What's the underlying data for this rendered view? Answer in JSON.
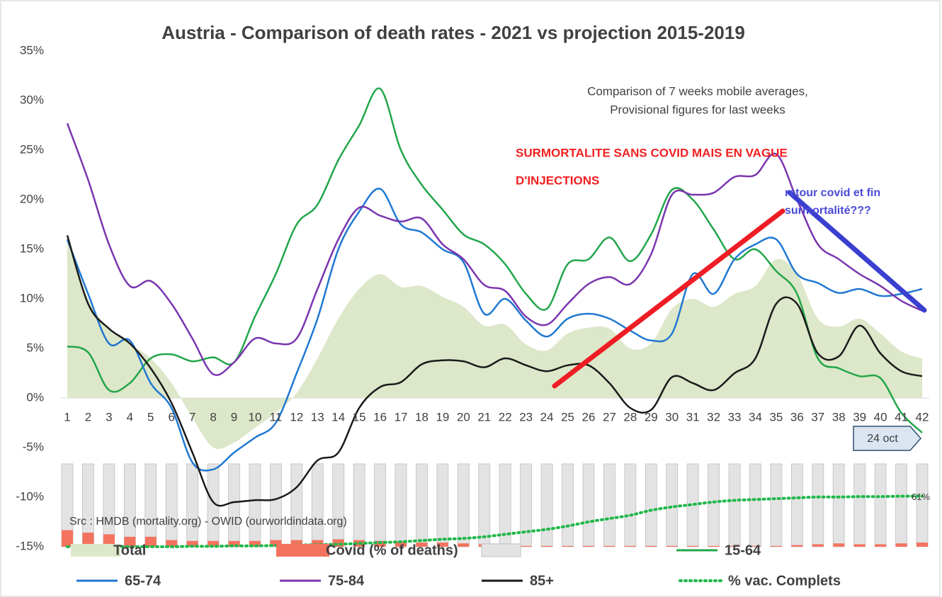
{
  "chart_data": {
    "type": "line",
    "title": "Austria - Comparison of death rates - 2021 vs projection 2015-2019",
    "subtitle": [
      "Comparison of 7 weeks mobile averages,",
      "Provisional figures for last weeks"
    ],
    "annotations": {
      "red": [
        "SURMORTALITE SANS COVID MAIS EN VAGUE",
        "D'INJECTIONS"
      ],
      "blue": [
        "retour covid et fin",
        "surmortalité???"
      ],
      "date": "24 oct",
      "source": "Src : HMDB (mortality.org) - OWID (ourworldindata.org)"
    },
    "categories": [
      "1",
      "2",
      "3",
      "4",
      "5",
      "6",
      "7",
      "8",
      "9",
      "10",
      "11",
      "12",
      "13",
      "14",
      "15",
      "16",
      "17",
      "18",
      "19",
      "20",
      "21",
      "22",
      "23",
      "24",
      "25",
      "26",
      "27",
      "28",
      "29",
      "30",
      "31",
      "32",
      "33",
      "34",
      "35",
      "36",
      "37",
      "38",
      "39",
      "40",
      "41",
      "42"
    ],
    "ylim": [
      -15,
      35
    ],
    "yticks": [
      {
        "value": -15,
        "label": "-15%"
      },
      {
        "value": -10,
        "label": "-10%"
      },
      {
        "value": -5,
        "label": "-5%"
      },
      {
        "value": 0,
        "label": "0%"
      },
      {
        "value": 5,
        "label": "5%"
      },
      {
        "value": 10,
        "label": "10%"
      },
      {
        "value": 15,
        "label": "15%"
      },
      {
        "value": 20,
        "label": "20%"
      },
      {
        "value": 25,
        "label": "25%"
      },
      {
        "value": 30,
        "label": "30%"
      },
      {
        "value": 35,
        "label": "35%"
      }
    ],
    "y2lim": [
      0,
      100
    ],
    "series": [
      {
        "name": "Total",
        "type": "area",
        "color": "#dde7c9",
        "values": [
          16,
          10,
          7,
          5.5,
          4,
          1.5,
          -2,
          -5,
          -4.5,
          -3,
          -1.5,
          0.5,
          4,
          8,
          11,
          12.5,
          11.2,
          11.3,
          10.2,
          9.2,
          7.3,
          7.4,
          5.4,
          4.8,
          6.5,
          7.1,
          7,
          5,
          5.5,
          9,
          10,
          9.2,
          10.5,
          11.3,
          14,
          12.5,
          8,
          7.2,
          8,
          6.5,
          4.7,
          4
        ]
      },
      {
        "name": "Covid (% of deaths)",
        "type": "bar",
        "axis": "y2",
        "color": "#f4735f",
        "values": [
          20,
          17,
          15,
          12,
          12,
          8,
          7,
          7,
          7,
          7,
          8,
          8,
          8,
          9,
          8,
          7,
          6,
          5,
          5,
          4,
          3,
          2,
          1,
          1,
          1,
          1,
          1,
          1,
          1,
          1,
          1,
          1,
          1,
          1,
          1,
          2,
          3,
          4,
          3,
          3,
          4,
          5
        ]
      },
      {
        "name": "15-64",
        "type": "line",
        "color": "#22a64a",
        "values": [
          5.2,
          4.6,
          0.8,
          1.5,
          4,
          4.4,
          3.7,
          4.1,
          3.6,
          8.2,
          12.5,
          17.5,
          19.5,
          24,
          27.5,
          31.2,
          25,
          21.5,
          19,
          16.5,
          15.5,
          13.5,
          10.5,
          9,
          13.5,
          14,
          16.2,
          13.8,
          16.5,
          21,
          20,
          17,
          14,
          15,
          12.8,
          10.5,
          4,
          3,
          2.2,
          2,
          -1.5,
          -3.5
        ]
      },
      {
        "name": "65-74",
        "type": "line",
        "color": "#1f78d1",
        "values": [
          16,
          10.5,
          5.5,
          5.8,
          1.5,
          -1,
          -6.5,
          -7.2,
          -5.5,
          -4,
          -2.5,
          2.5,
          8,
          15,
          18.8,
          21.1,
          17.5,
          16.7,
          15,
          13.7,
          8.5,
          10,
          7.8,
          6.2,
          8,
          8.5,
          8,
          6.8,
          5.8,
          6.5,
          12.5,
          10.5,
          14,
          15.5,
          16,
          12.5,
          11.6,
          10.6,
          11,
          10.3,
          10.5,
          11
        ]
      },
      {
        "name": "75-84",
        "type": "line",
        "color": "#7a35b0",
        "values": [
          27.7,
          22,
          15.5,
          11.3,
          11.8,
          9.5,
          6,
          2.4,
          3.6,
          6,
          5.5,
          6,
          11,
          16,
          19.2,
          18.4,
          17.8,
          18.1,
          15.5,
          14,
          11.4,
          10.8,
          8.2,
          7.4,
          9.5,
          11.5,
          12.2,
          11.5,
          14.5,
          20.5,
          20.5,
          20.7,
          22.3,
          22.5,
          24.6,
          20,
          15.5,
          14,
          12.5,
          11.3,
          9.8,
          8.8
        ]
      },
      {
        "name": "85+",
        "type": "line",
        "color": "#1a1a1a",
        "values": [
          16.4,
          9.5,
          7,
          5.5,
          3,
          -0.5,
          -5.5,
          -10.5,
          -10.5,
          -10.3,
          -10.2,
          -9,
          -6.3,
          -5.5,
          -1,
          1.1,
          1.6,
          3.4,
          3.8,
          3.7,
          3.1,
          4,
          3.3,
          2.7,
          3.3,
          3.3,
          1.5,
          -1,
          -1.2,
          2.1,
          1.5,
          0.8,
          2.5,
          4,
          9.5,
          9.5,
          4.5,
          4.2,
          7.3,
          4.5,
          2.7,
          2.2
        ]
      },
      {
        "name": "% vac. Complets",
        "type": "dotted",
        "axis": "y2",
        "color": "#1fb84a",
        "values": [
          0,
          0,
          0,
          0,
          0,
          0,
          0.5,
          0.5,
          1,
          1,
          1.5,
          2,
          2.5,
          3,
          4,
          5,
          6,
          7.5,
          9,
          10,
          12,
          15,
          18,
          21,
          25,
          30,
          34,
          38,
          44,
          48,
          51,
          54,
          56,
          57,
          58,
          59,
          60,
          60,
          60.5,
          60.5,
          61,
          61
        ],
        "value_labels": [
          null,
          null,
          null,
          null,
          null,
          null,
          null,
          null,
          null,
          null,
          null,
          null,
          null,
          null,
          null,
          null,
          null,
          null,
          null,
          null,
          null,
          null,
          null,
          null,
          null,
          null,
          null,
          null,
          null,
          null,
          null,
          null,
          null,
          null,
          null,
          null,
          null,
          null,
          null,
          null,
          null,
          "61%"
        ]
      }
    ]
  }
}
